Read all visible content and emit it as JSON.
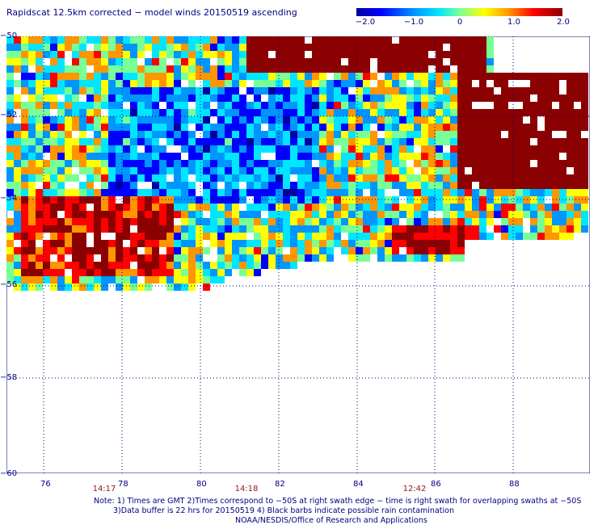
{
  "title": "Rapidscat 12.5km corrected − model winds 20150519 ascending",
  "colorbar": {
    "min": -2.0,
    "max": 2.0,
    "ticks": [
      "−2.0",
      "−1.0",
      "0",
      "1.0",
      "2.0"
    ],
    "colors": [
      "#0000a0",
      "#0000ff",
      "#0096ff",
      "#00e6ff",
      "#78ff96",
      "#ffff00",
      "#ff9600",
      "#ff0000",
      "#8b0000"
    ]
  },
  "lat_labels": [
    "−50",
    "−52",
    "−54",
    "−56",
    "−58",
    "−60"
  ],
  "lon_labels": [
    "76",
    "78",
    "80",
    "82",
    "84",
    "86",
    "88"
  ],
  "time_labels": [
    "14:17",
    "14:18",
    "12:42"
  ],
  "notes": {
    "line1": "Note: 1) Times are GMT 2)Times correspond to −50S at right swath edge − time is right swath for overlapping swaths at −50S",
    "line2": "3)Data buffer is 22 hrs for 20150519 4) Black barbs indicate possible rain contamination",
    "line3": "NOAA/NESDIS/Office of Research and Applications"
  }
}
